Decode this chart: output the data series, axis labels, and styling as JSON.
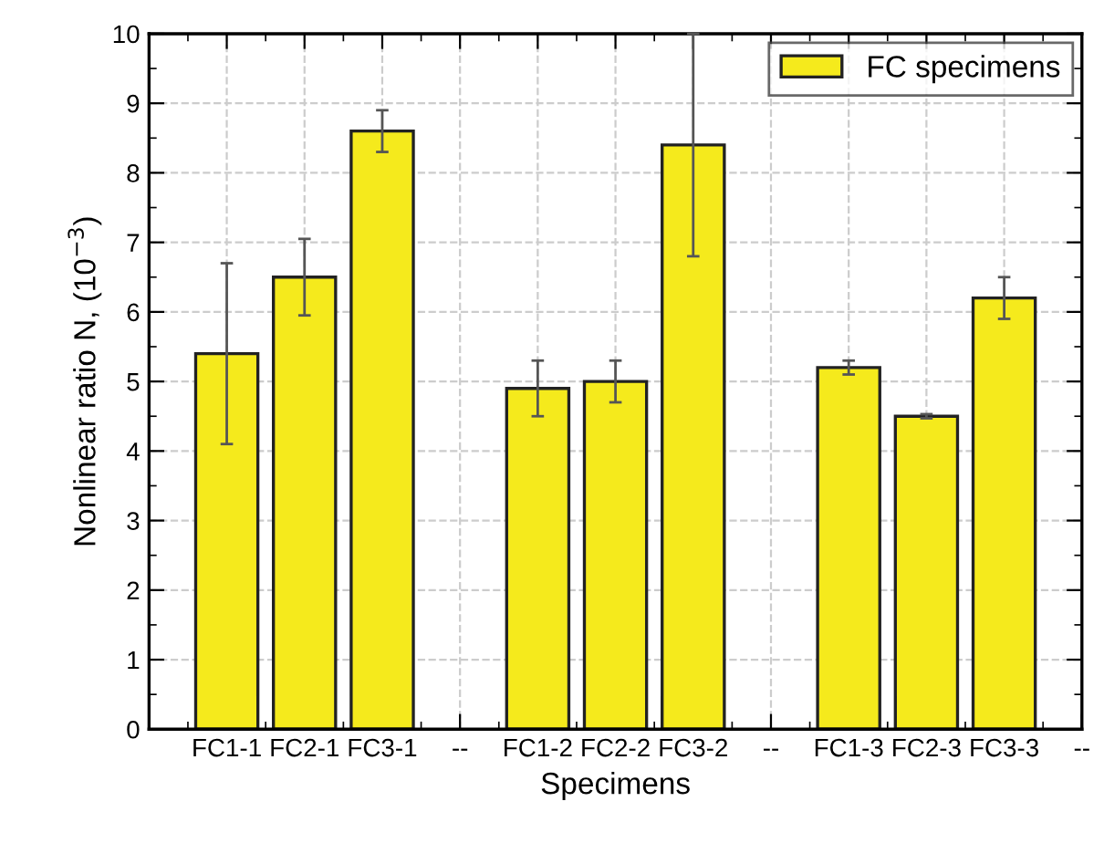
{
  "chart_data": {
    "type": "bar",
    "xlabel": "Specimens",
    "ylabel": "Nonlinear ratio N, (10$^{−3}$)",
    "categories": [
      "FC1-1",
      "FC2-1",
      "FC3-1",
      "--",
      "FC1-2",
      "FC2-2",
      "FC3-2",
      "--",
      "FC1-3",
      "FC2-3",
      "FC3-3",
      "--"
    ],
    "series": [
      {
        "name": "FC specimens",
        "color": "#f5ea1c",
        "values": [
          5.4,
          6.5,
          8.6,
          null,
          4.9,
          5.0,
          8.4,
          null,
          5.2,
          4.5,
          6.2,
          null
        ],
        "errors": [
          [
            4.1,
            6.7
          ],
          [
            5.95,
            7.05
          ],
          [
            8.3,
            8.9
          ],
          null,
          [
            4.5,
            5.3
          ],
          [
            4.7,
            5.3
          ],
          [
            6.8,
            10.0
          ],
          null,
          [
            5.1,
            5.3
          ],
          [
            4.47,
            4.53
          ],
          [
            5.9,
            6.5
          ],
          null
        ]
      }
    ],
    "ylim": [
      0,
      10
    ],
    "yticks": [
      0,
      1,
      2,
      3,
      4,
      5,
      6,
      7,
      8,
      9,
      10
    ],
    "grid": true,
    "legend": "top right"
  }
}
